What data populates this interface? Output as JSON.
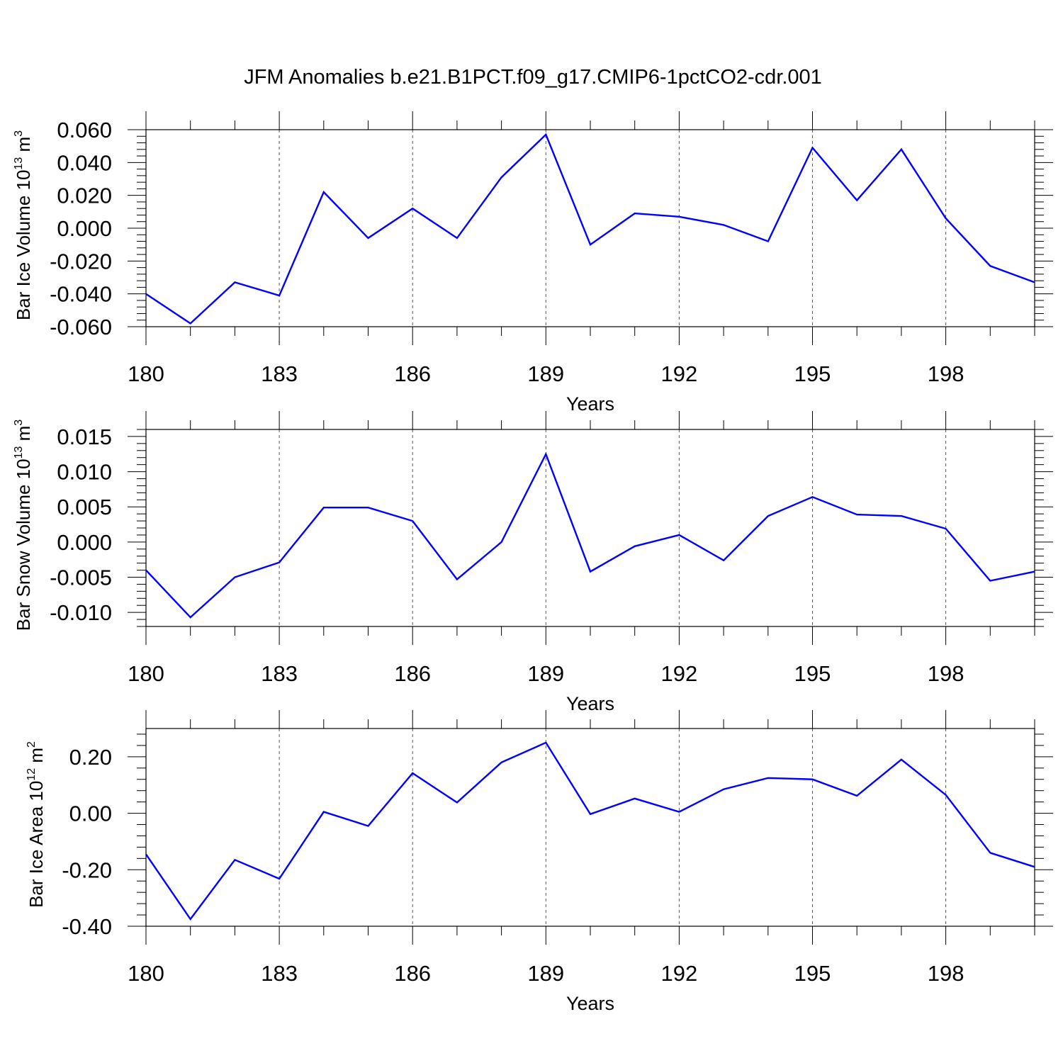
{
  "title": "JFM Anomalies b.e21.B1PCT.f09_g17.CMIP6-1pctCO2-cdr.001",
  "line_color": "#0000ff",
  "chart_data": [
    {
      "type": "line",
      "ylabel": "Bar Ice Volume",
      "ylabel_unit_base": "10",
      "ylabel_unit_exp": "13",
      "ylabel_unit_m": "m",
      "ylabel_unit_m_exp": "3",
      "xlabel": "Years",
      "xlim": [
        180,
        200
      ],
      "xticks": [
        180,
        183,
        186,
        189,
        192,
        195,
        198
      ],
      "ylim": [
        -0.06,
        0.06
      ],
      "yticks": [
        -0.06,
        -0.04,
        -0.02,
        0.0,
        0.02,
        0.04,
        0.06
      ],
      "ytick_labels": [
        "-0.060",
        "-0.040",
        "-0.020",
        "0.000",
        "0.020",
        "0.040",
        "0.060"
      ],
      "grid": "vertical dashed at major x ticks",
      "series": [
        {
          "x": [
            180,
            181,
            182,
            183,
            184,
            185,
            186,
            187,
            188,
            189,
            190,
            191,
            192,
            193,
            194,
            195,
            196,
            197,
            198,
            199,
            200
          ],
          "values": [
            -0.04,
            -0.058,
            -0.033,
            -0.041,
            0.022,
            -0.006,
            0.012,
            -0.006,
            0.031,
            0.057,
            -0.01,
            0.009,
            0.007,
            0.002,
            -0.008,
            0.049,
            0.017,
            0.048,
            0.006,
            -0.023,
            -0.033
          ]
        }
      ]
    },
    {
      "type": "line",
      "ylabel": "Bar Snow Volume",
      "ylabel_unit_base": "10",
      "ylabel_unit_exp": "13",
      "ylabel_unit_m": "m",
      "ylabel_unit_m_exp": "3",
      "xlabel": "Years",
      "xlim": [
        180,
        200
      ],
      "xticks": [
        180,
        183,
        186,
        189,
        192,
        195,
        198
      ],
      "ylim": [
        -0.012,
        0.016
      ],
      "yticks": [
        -0.01,
        -0.005,
        0.0,
        0.005,
        0.01,
        0.015
      ],
      "ytick_labels": [
        "-0.010",
        "-0.005",
        "0.000",
        "0.005",
        "0.010",
        "0.015"
      ],
      "grid": "vertical dashed at major x ticks",
      "series": [
        {
          "x": [
            180,
            181,
            182,
            183,
            184,
            185,
            186,
            187,
            188,
            189,
            190,
            191,
            192,
            193,
            194,
            195,
            196,
            197,
            198,
            199,
            200
          ],
          "values": [
            -0.004,
            -0.0107,
            -0.005,
            -0.0029,
            0.0049,
            0.0049,
            0.003,
            -0.0053,
            0.0,
            0.0125,
            -0.0042,
            -0.0006,
            0.001,
            -0.0026,
            0.0037,
            0.0064,
            0.0039,
            0.0037,
            0.0019,
            -0.0055,
            -0.0042
          ]
        }
      ]
    },
    {
      "type": "line",
      "ylabel": "Bar Ice Area",
      "ylabel_unit_base": "10",
      "ylabel_unit_exp": "12",
      "ylabel_unit_m": "m",
      "ylabel_unit_m_exp": "2",
      "xlabel": "Years",
      "xlim": [
        180,
        200
      ],
      "xticks": [
        180,
        183,
        186,
        189,
        192,
        195,
        198
      ],
      "ylim": [
        -0.4,
        0.3
      ],
      "yticks": [
        -0.4,
        -0.2,
        0.0,
        0.2
      ],
      "ytick_labels": [
        "-0.40",
        "-0.20",
        "0.00",
        "0.20"
      ],
      "grid": "vertical dashed at major x ticks",
      "series": [
        {
          "x": [
            180,
            181,
            182,
            183,
            184,
            185,
            186,
            187,
            188,
            189,
            190,
            191,
            192,
            193,
            194,
            195,
            196,
            197,
            198,
            199,
            200
          ],
          "values": [
            -0.145,
            -0.375,
            -0.165,
            -0.232,
            0.005,
            -0.045,
            0.142,
            0.038,
            0.18,
            0.25,
            -0.003,
            0.052,
            0.005,
            0.085,
            0.125,
            0.12,
            0.062,
            0.19,
            0.065,
            -0.14,
            -0.19
          ]
        }
      ]
    }
  ]
}
